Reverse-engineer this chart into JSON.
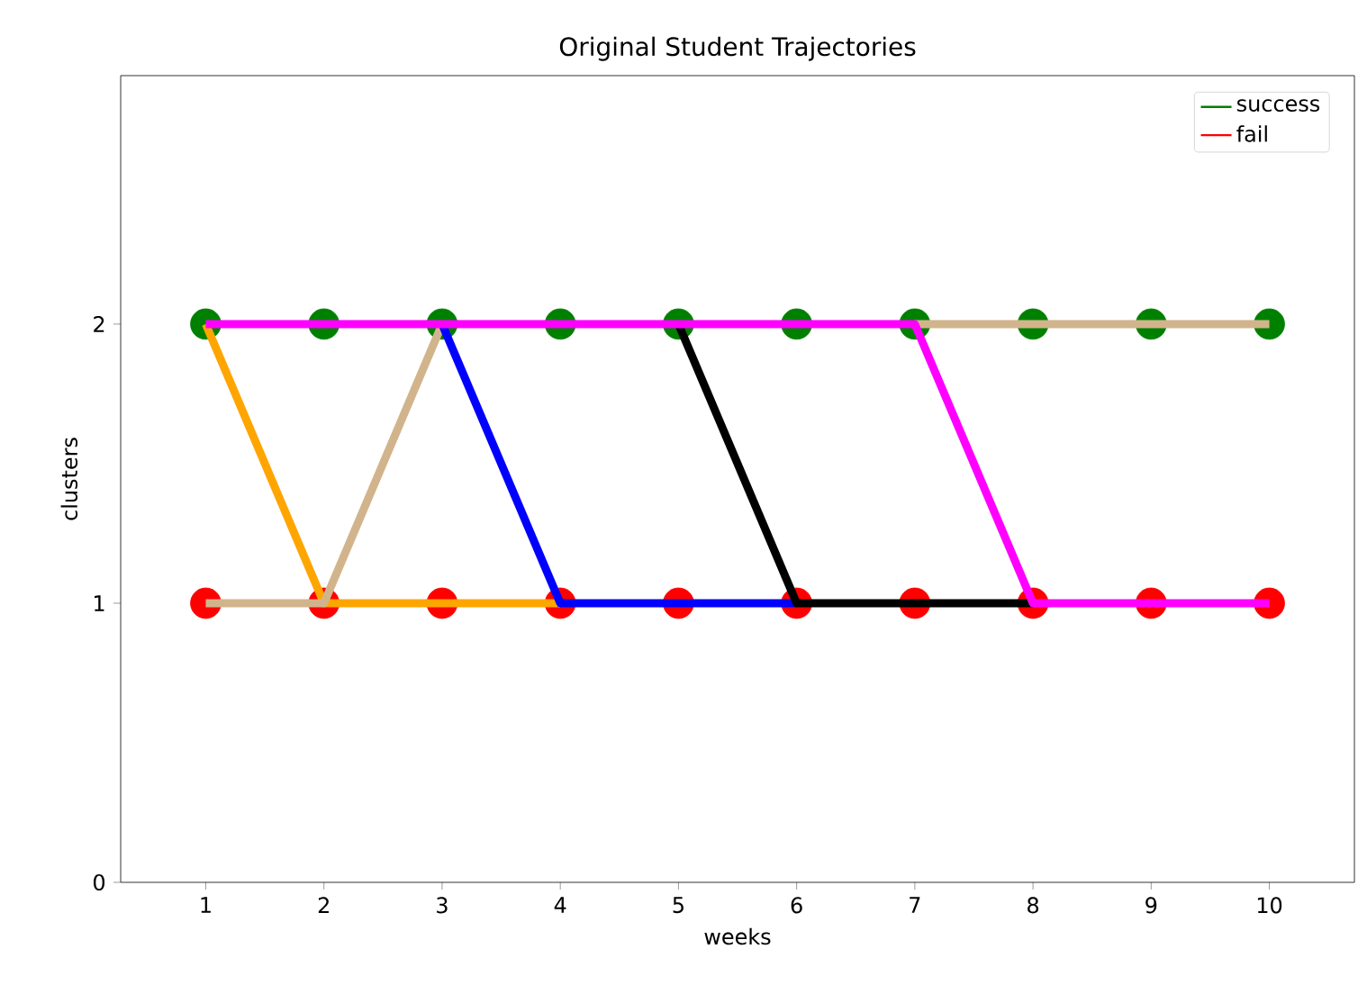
{
  "chart_data": {
    "type": "line",
    "title": "Original Student Trajectories",
    "xlabel": "weeks",
    "ylabel": "clusters",
    "x": [
      1,
      2,
      3,
      4,
      5,
      6,
      7,
      8,
      9,
      10
    ],
    "series": [
      {
        "name": "success",
        "type": "scatter",
        "marker": "circle",
        "color": "#008000",
        "values": [
          2,
          2,
          2,
          2,
          2,
          2,
          2,
          2,
          2,
          2
        ]
      },
      {
        "name": "fail",
        "type": "scatter",
        "marker": "circle",
        "color": "#ff0000",
        "values": [
          1,
          1,
          1,
          1,
          1,
          1,
          1,
          1,
          1,
          1
        ]
      },
      {
        "color": "#ffa500",
        "marker": "none",
        "values": [
          2,
          1,
          1,
          1,
          null,
          null,
          null,
          null,
          null,
          null
        ]
      },
      {
        "color": "#d2b48c",
        "marker": "none",
        "values": [
          1,
          1,
          2,
          null,
          null,
          null,
          2,
          2,
          2,
          2
        ]
      },
      {
        "color": "#0000ff",
        "marker": "none",
        "values": [
          null,
          null,
          2,
          1,
          1,
          1,
          null,
          null,
          null,
          null
        ]
      },
      {
        "color": "#000000",
        "marker": "none",
        "values": [
          null,
          null,
          null,
          null,
          2,
          1,
          1,
          1,
          null,
          null
        ]
      },
      {
        "color": "#ff00ff",
        "marker": "none",
        "values": [
          2,
          2,
          2,
          2,
          2,
          2,
          2,
          1,
          1,
          1
        ]
      }
    ],
    "xlim": [
      0.28,
      10.72
    ],
    "ylim": [
      0,
      2.89
    ],
    "xticks": [
      1,
      2,
      3,
      4,
      5,
      6,
      7,
      8,
      9,
      10
    ],
    "yticks": [
      0,
      1,
      2
    ],
    "grid": false,
    "legend": "top right"
  }
}
